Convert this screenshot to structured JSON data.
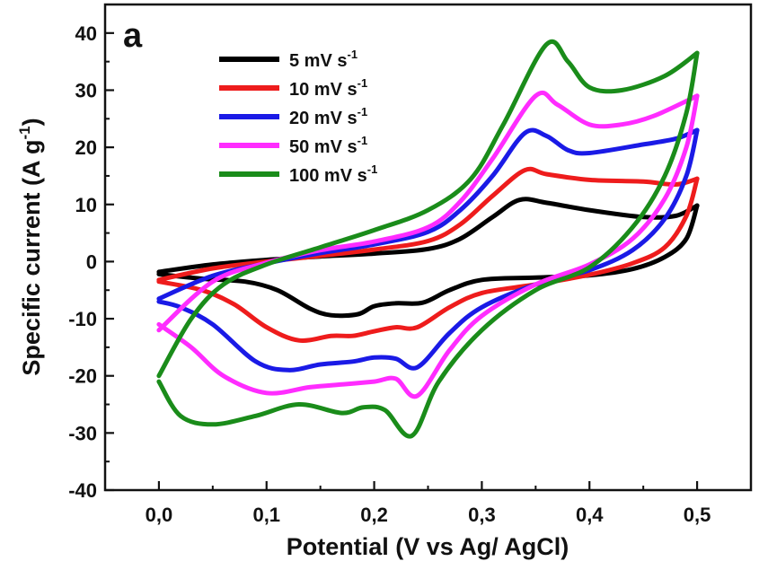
{
  "chart_data": {
    "type": "line",
    "panel_label": "a",
    "xlabel": "Potential (V vs Ag/ AgCl)",
    "ylabel_main": "Specific current (A g",
    "ylabel_sup": "-1",
    "ylabel_end": ")",
    "xlim": [
      -0.05,
      0.55
    ],
    "ylim": [
      -40,
      45
    ],
    "x_ticks": [
      0.0,
      0.1,
      0.2,
      0.3,
      0.4,
      0.5
    ],
    "x_tick_labels": [
      "0,0",
      "0,1",
      "0,2",
      "0,3",
      "0,4",
      "0,5"
    ],
    "y_ticks": [
      -40,
      -30,
      -20,
      -10,
      0,
      10,
      20,
      30,
      40
    ],
    "y_tick_labels": [
      "-40",
      "-30",
      "-20",
      "-10",
      "0",
      "10",
      "20",
      "30",
      "40"
    ],
    "legend_position": "top-left",
    "grid": false,
    "series": [
      {
        "name": "5 mV s",
        "name_sup": "-1",
        "color": "#000000",
        "anodic": [
          [
            0.0,
            -1.8
          ],
          [
            0.05,
            -0.5
          ],
          [
            0.1,
            0.3
          ],
          [
            0.15,
            0.9
          ],
          [
            0.2,
            1.4
          ],
          [
            0.25,
            2.2
          ],
          [
            0.28,
            4.0
          ],
          [
            0.31,
            7.8
          ],
          [
            0.335,
            10.8
          ],
          [
            0.36,
            10.3
          ],
          [
            0.4,
            9.0
          ],
          [
            0.45,
            7.8
          ],
          [
            0.48,
            8.0
          ],
          [
            0.5,
            9.8
          ]
        ],
        "cathodic": [
          [
            0.5,
            9.8
          ],
          [
            0.49,
            4.0
          ],
          [
            0.47,
            0.8
          ],
          [
            0.44,
            -1.3
          ],
          [
            0.4,
            -2.4
          ],
          [
            0.35,
            -2.8
          ],
          [
            0.3,
            -3.2
          ],
          [
            0.27,
            -5.0
          ],
          [
            0.245,
            -7.2
          ],
          [
            0.22,
            -7.3
          ],
          [
            0.2,
            -7.8
          ],
          [
            0.185,
            -9.2
          ],
          [
            0.16,
            -9.4
          ],
          [
            0.14,
            -8.2
          ],
          [
            0.11,
            -5.0
          ],
          [
            0.08,
            -3.5
          ],
          [
            0.04,
            -3.0
          ],
          [
            0.0,
            -2.2
          ]
        ]
      },
      {
        "name": "10 mV s",
        "name_sup": "-1",
        "color": "#ee1c1c",
        "anodic": [
          [
            0.0,
            -3.2
          ],
          [
            0.05,
            -1.2
          ],
          [
            0.1,
            0.0
          ],
          [
            0.15,
            1.0
          ],
          [
            0.2,
            2.1
          ],
          [
            0.25,
            3.6
          ],
          [
            0.28,
            6.5
          ],
          [
            0.31,
            11.5
          ],
          [
            0.34,
            16.0
          ],
          [
            0.36,
            15.3
          ],
          [
            0.4,
            14.3
          ],
          [
            0.45,
            14.0
          ],
          [
            0.48,
            13.5
          ],
          [
            0.5,
            14.5
          ]
        ],
        "cathodic": [
          [
            0.5,
            14.5
          ],
          [
            0.49,
            8.0
          ],
          [
            0.47,
            2.5
          ],
          [
            0.44,
            -0.3
          ],
          [
            0.4,
            -2.3
          ],
          [
            0.35,
            -4.0
          ],
          [
            0.3,
            -5.5
          ],
          [
            0.27,
            -8.0
          ],
          [
            0.24,
            -11.5
          ],
          [
            0.22,
            -11.5
          ],
          [
            0.2,
            -12.2
          ],
          [
            0.18,
            -13.0
          ],
          [
            0.16,
            -13.0
          ],
          [
            0.13,
            -13.8
          ],
          [
            0.1,
            -11.5
          ],
          [
            0.07,
            -7.5
          ],
          [
            0.04,
            -5.0
          ],
          [
            0.0,
            -3.5
          ]
        ]
      },
      {
        "name": "20 mV s",
        "name_sup": "-1",
        "color": "#1a1ae6",
        "anodic": [
          [
            0.0,
            -6.5
          ],
          [
            0.05,
            -2.5
          ],
          [
            0.1,
            -0.3
          ],
          [
            0.15,
            1.5
          ],
          [
            0.2,
            3.0
          ],
          [
            0.25,
            5.2
          ],
          [
            0.28,
            9.0
          ],
          [
            0.31,
            15.0
          ],
          [
            0.34,
            22.5
          ],
          [
            0.36,
            22.0
          ],
          [
            0.38,
            19.5
          ],
          [
            0.4,
            19.0
          ],
          [
            0.45,
            20.5
          ],
          [
            0.48,
            21.5
          ],
          [
            0.5,
            23.0
          ]
        ],
        "cathodic": [
          [
            0.5,
            23.0
          ],
          [
            0.49,
            15.0
          ],
          [
            0.47,
            7.5
          ],
          [
            0.44,
            2.0
          ],
          [
            0.4,
            -1.5
          ],
          [
            0.35,
            -4.0
          ],
          [
            0.3,
            -8.0
          ],
          [
            0.27,
            -12.5
          ],
          [
            0.24,
            -18.5
          ],
          [
            0.22,
            -17.0
          ],
          [
            0.2,
            -16.8
          ],
          [
            0.18,
            -17.5
          ],
          [
            0.15,
            -18.0
          ],
          [
            0.12,
            -19.0
          ],
          [
            0.09,
            -17.5
          ],
          [
            0.05,
            -11.0
          ],
          [
            0.02,
            -8.0
          ],
          [
            0.0,
            -7.0
          ]
        ]
      },
      {
        "name": "50 mV s",
        "name_sup": "-1",
        "color": "#ff2cff",
        "anodic": [
          [
            0.0,
            -12.0
          ],
          [
            0.05,
            -3.5
          ],
          [
            0.1,
            -0.2
          ],
          [
            0.15,
            2.0
          ],
          [
            0.2,
            3.5
          ],
          [
            0.25,
            6.0
          ],
          [
            0.28,
            10.5
          ],
          [
            0.31,
            18.0
          ],
          [
            0.35,
            29.0
          ],
          [
            0.37,
            27.5
          ],
          [
            0.4,
            24.0
          ],
          [
            0.43,
            24.0
          ],
          [
            0.46,
            25.5
          ],
          [
            0.5,
            29.0
          ]
        ],
        "cathodic": [
          [
            0.5,
            29.0
          ],
          [
            0.49,
            20.0
          ],
          [
            0.47,
            11.0
          ],
          [
            0.44,
            4.0
          ],
          [
            0.4,
            -0.5
          ],
          [
            0.35,
            -4.0
          ],
          [
            0.3,
            -9.5
          ],
          [
            0.27,
            -15.5
          ],
          [
            0.24,
            -23.5
          ],
          [
            0.22,
            -20.5
          ],
          [
            0.2,
            -21.0
          ],
          [
            0.17,
            -21.5
          ],
          [
            0.14,
            -22.0
          ],
          [
            0.1,
            -23.0
          ],
          [
            0.06,
            -20.0
          ],
          [
            0.03,
            -15.0
          ],
          [
            0.0,
            -11.0
          ]
        ]
      },
      {
        "name": "100 mV s",
        "name_sup": "-1",
        "color": "#1a8c1a",
        "anodic": [
          [
            0.0,
            -20.0
          ],
          [
            0.03,
            -10.0
          ],
          [
            0.06,
            -4.0
          ],
          [
            0.1,
            -0.5
          ],
          [
            0.15,
            2.5
          ],
          [
            0.2,
            5.5
          ],
          [
            0.25,
            9.0
          ],
          [
            0.29,
            14.5
          ],
          [
            0.32,
            24.0
          ],
          [
            0.36,
            38.0
          ],
          [
            0.38,
            35.0
          ],
          [
            0.4,
            30.5
          ],
          [
            0.43,
            30.0
          ],
          [
            0.47,
            32.5
          ],
          [
            0.5,
            36.5
          ]
        ],
        "cathodic": [
          [
            0.5,
            36.5
          ],
          [
            0.49,
            26.0
          ],
          [
            0.47,
            15.0
          ],
          [
            0.44,
            6.0
          ],
          [
            0.4,
            -1.0
          ],
          [
            0.35,
            -5.0
          ],
          [
            0.3,
            -12.0
          ],
          [
            0.26,
            -21.0
          ],
          [
            0.235,
            -30.5
          ],
          [
            0.21,
            -26.0
          ],
          [
            0.19,
            -25.5
          ],
          [
            0.17,
            -26.5
          ],
          [
            0.13,
            -25.0
          ],
          [
            0.09,
            -27.0
          ],
          [
            0.05,
            -28.5
          ],
          [
            0.02,
            -27.0
          ],
          [
            0.0,
            -21.0
          ]
        ]
      }
    ]
  }
}
